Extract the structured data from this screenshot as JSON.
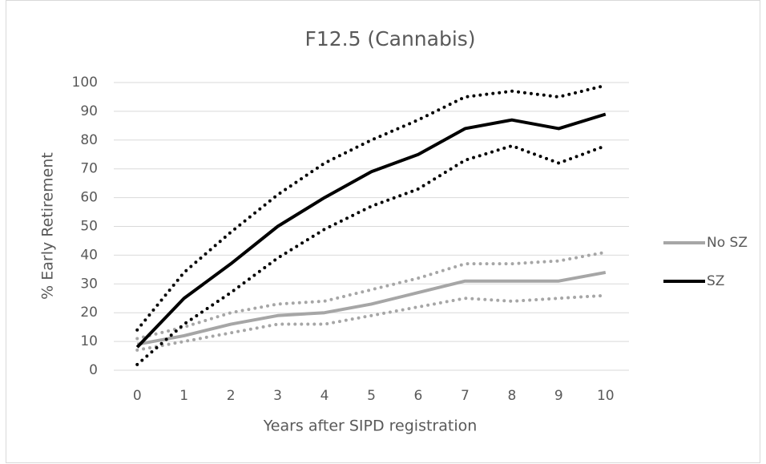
{
  "chart_data": {
    "type": "line",
    "title": "F12.5 (Cannabis)",
    "x_label": "Years after SIPD registration",
    "y_label": "% Early Retirement",
    "categories": [
      "0",
      "1",
      "2",
      "3",
      "4",
      "5",
      "6",
      "7",
      "8",
      "9",
      "10"
    ],
    "ylim": [
      0,
      100
    ],
    "yticks": [
      0,
      10,
      20,
      30,
      40,
      50,
      60,
      70,
      80,
      90,
      100
    ],
    "grid": true,
    "legend": "right",
    "series": [
      {
        "name": "No SZ",
        "color": "#a6a6a6",
        "values": [
          9,
          12,
          16,
          19,
          20,
          23,
          27,
          31,
          31,
          31,
          34
        ],
        "upper": [
          11,
          15,
          20,
          23,
          24,
          28,
          32,
          37,
          37,
          38,
          41
        ],
        "lower": [
          7,
          10,
          13,
          16,
          16,
          19,
          22,
          25,
          24,
          25,
          26
        ]
      },
      {
        "name": "SZ",
        "color": "#000000",
        "values": [
          8,
          25,
          37,
          50,
          60,
          69,
          75,
          84,
          87,
          84,
          89
        ],
        "upper": [
          14,
          34,
          48,
          61,
          72,
          80,
          87,
          95,
          97,
          95,
          99
        ],
        "lower": [
          2,
          16,
          27,
          39,
          49,
          57,
          63,
          73,
          78,
          72,
          78
        ]
      }
    ]
  }
}
